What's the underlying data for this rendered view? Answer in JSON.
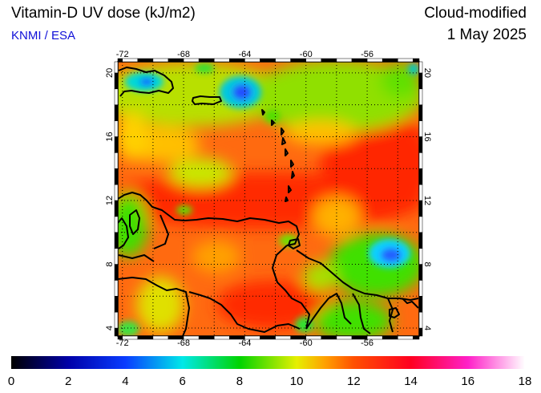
{
  "header": {
    "title": "Vitamin-D UV dose (kJ/m2)",
    "credit": "KNMI / ESA",
    "mode": "Cloud-modified",
    "date": "1 May 2025"
  },
  "map": {
    "lon_ticks": [
      "-72",
      "-68",
      "-64",
      "-60",
      "-56"
    ],
    "lat_ticks": [
      "20",
      "16",
      "12",
      "8",
      "4"
    ],
    "lon_values": [
      -72,
      -68,
      -64,
      -60,
      -56
    ],
    "lat_values": [
      20,
      16,
      12,
      8,
      4
    ],
    "lon_range": [
      -72.3,
      -52.6
    ],
    "lat_range": [
      3.5,
      20.7
    ]
  },
  "colorbar": {
    "labels": [
      "0",
      "2",
      "4",
      "6",
      "8",
      "10",
      "12",
      "14",
      "16",
      "18"
    ],
    "min": 0,
    "max": 18,
    "stops": [
      {
        "value": 0,
        "color": "#000000"
      },
      {
        "value": 2,
        "color": "#0000a8"
      },
      {
        "value": 4,
        "color": "#0a3cff"
      },
      {
        "value": 6,
        "color": "#00e8e8"
      },
      {
        "value": 8,
        "color": "#00d400"
      },
      {
        "value": 10,
        "color": "#e6ef00"
      },
      {
        "value": 11,
        "color": "#ffa000"
      },
      {
        "value": 12,
        "color": "#ff5000"
      },
      {
        "value": 14,
        "color": "#ff0020"
      },
      {
        "value": 16,
        "color": "#ff20c8"
      },
      {
        "value": 18,
        "color": "#ffffff"
      }
    ]
  }
}
